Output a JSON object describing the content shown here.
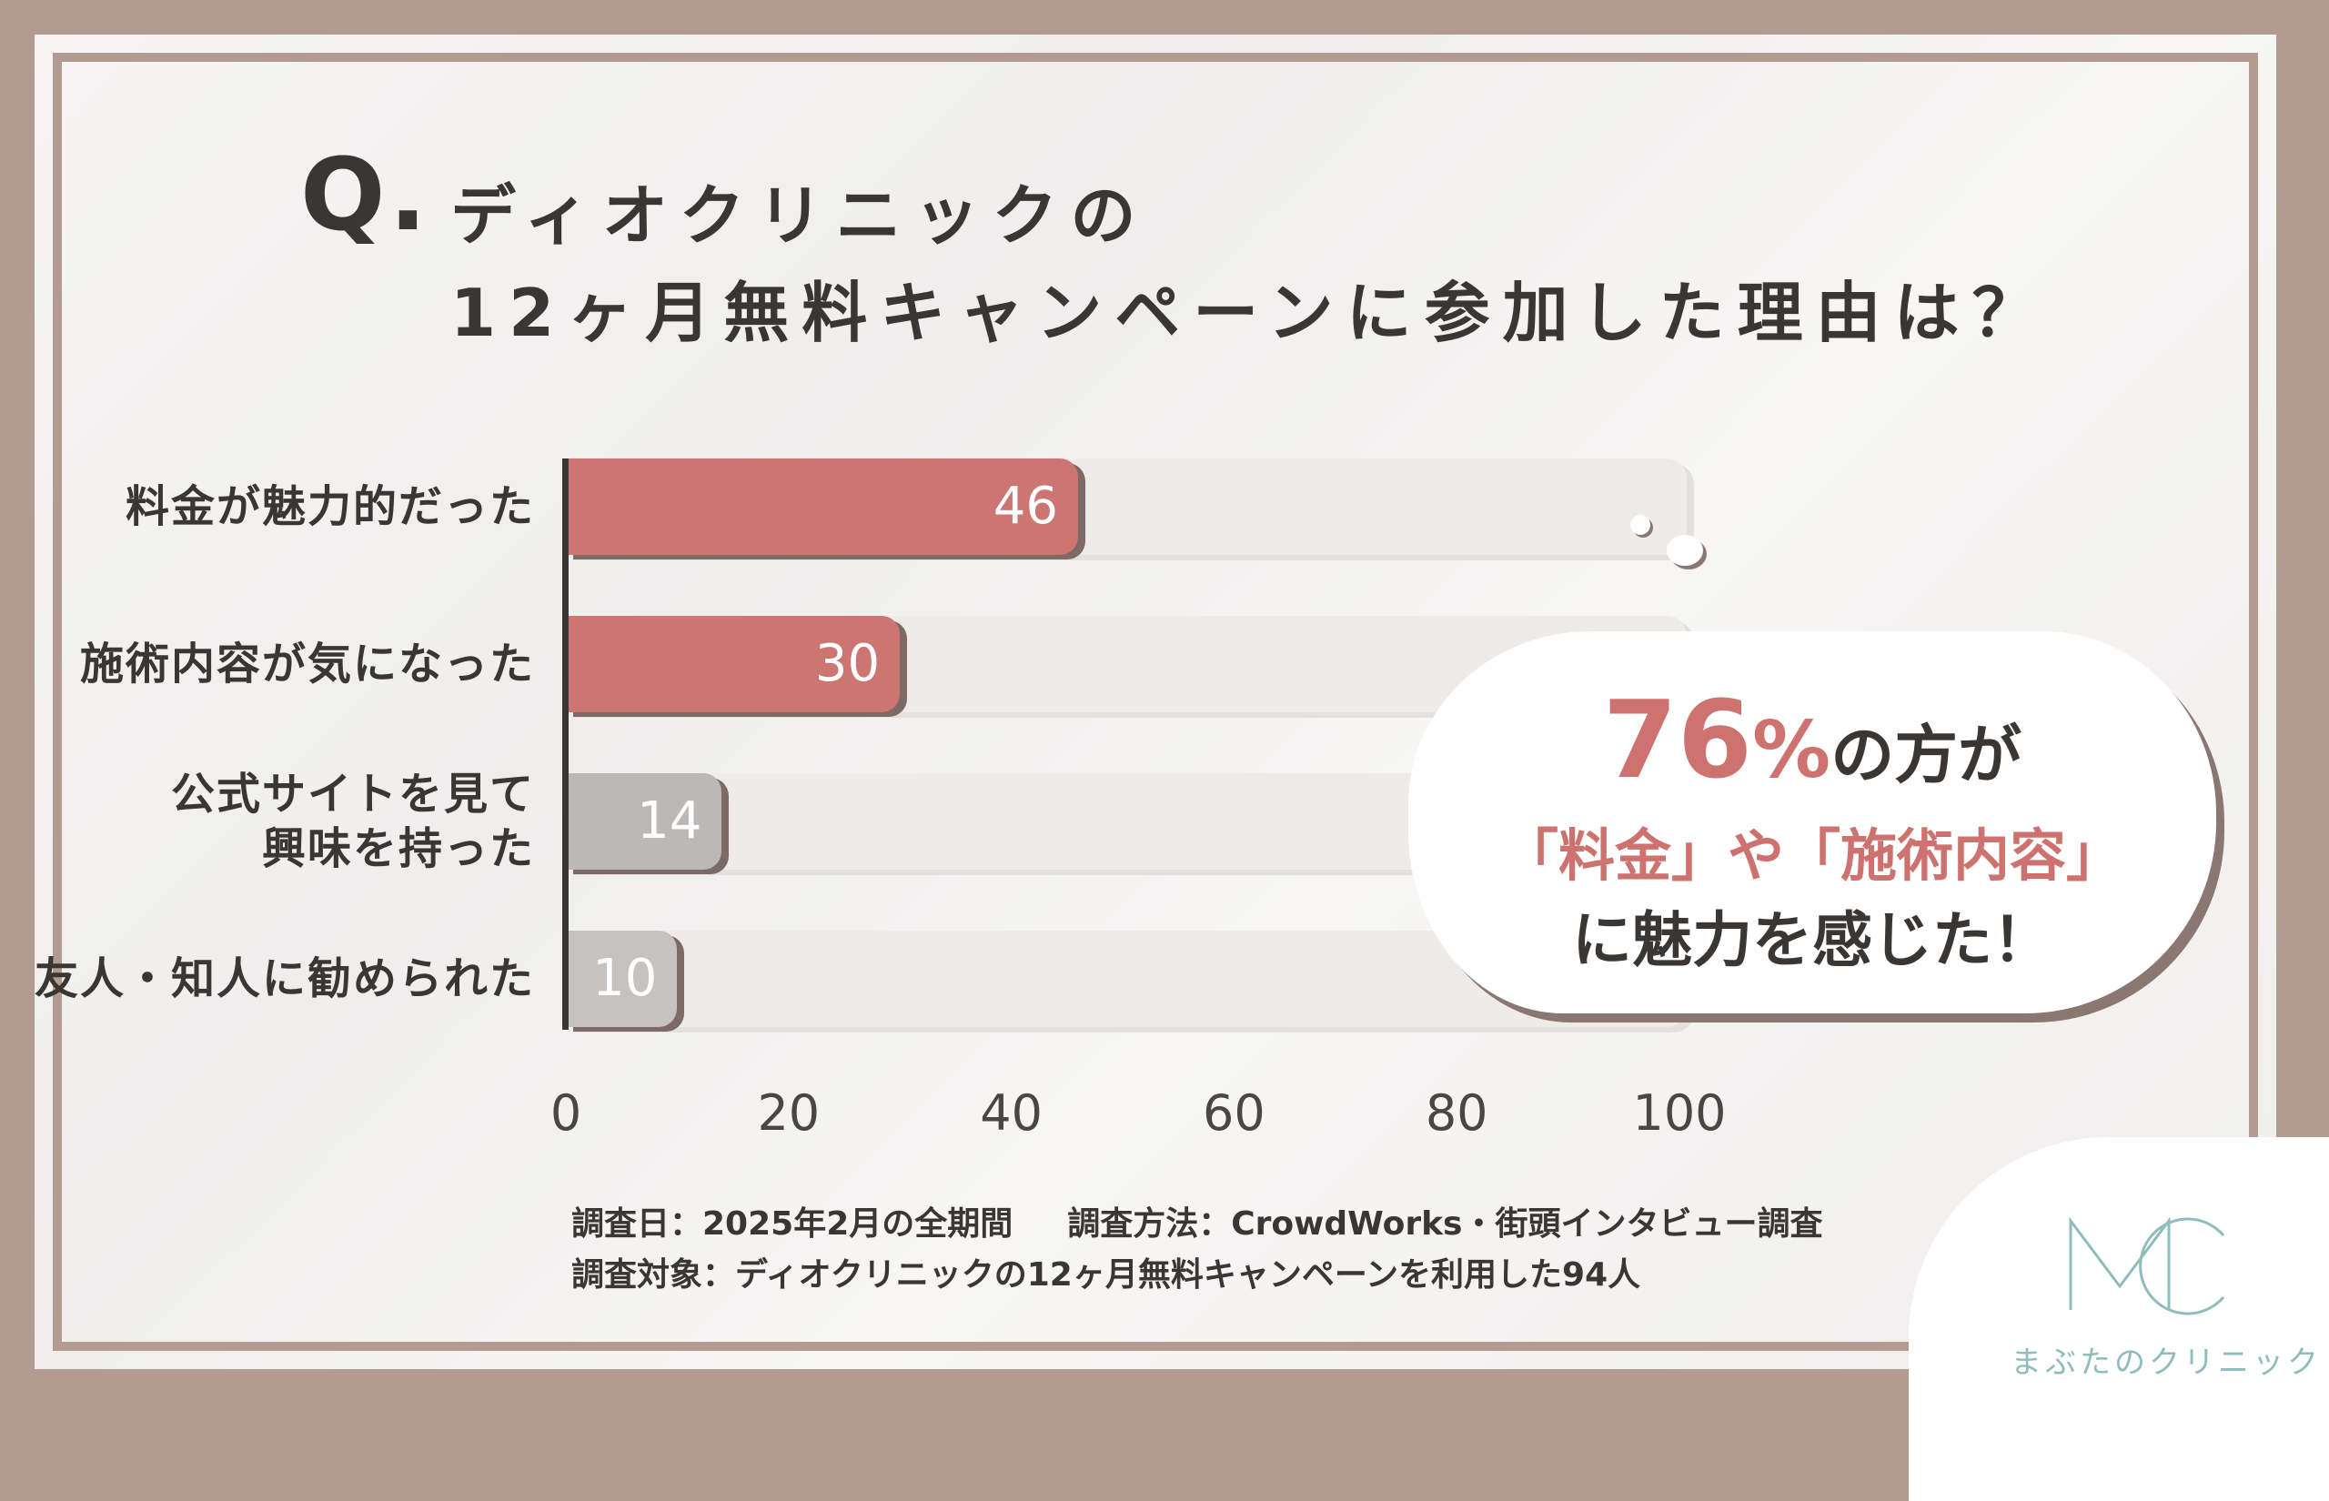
{
  "question": {
    "mark": "Q.",
    "line1": "ディオクリニックの",
    "line2": "12ヶ月無料キャンペーンに参加した理由は？"
  },
  "chart_data": {
    "type": "bar",
    "orientation": "horizontal",
    "categories": [
      "料金が魅力的だった",
      "施術内容が気になった",
      "公式サイトを見て\n興味を持った",
      "友人・知人に勧められた"
    ],
    "values": [
      46,
      30,
      14,
      10
    ],
    "value_labels": [
      "46",
      "30",
      "14",
      "10"
    ],
    "xlim": [
      0,
      100
    ],
    "xticks": [
      "0",
      "20",
      "40",
      "60",
      "80",
      "100"
    ],
    "colors": [
      "#cd7571",
      "#cd7571",
      "#bcb8b6",
      "#c6c2c0"
    ],
    "grid": false
  },
  "bubble": {
    "big_number": "76",
    "percent": "%",
    "line1_rest": "の方が",
    "line2": "「料金」や「施術内容」",
    "line3": "に魅力を感じた！"
  },
  "notes": {
    "date": "調査日：2025年2月の全期間",
    "method": "調査方法：CrowdWorks・街頭インタビュー調査",
    "target": "調査対象：ディオクリニックの12ヶ月無料キャンペーンを利用した94人"
  },
  "logo": {
    "text": "まぶたのクリニック",
    "icon": "mc-logo-icon",
    "color": "#8fbcbc"
  }
}
